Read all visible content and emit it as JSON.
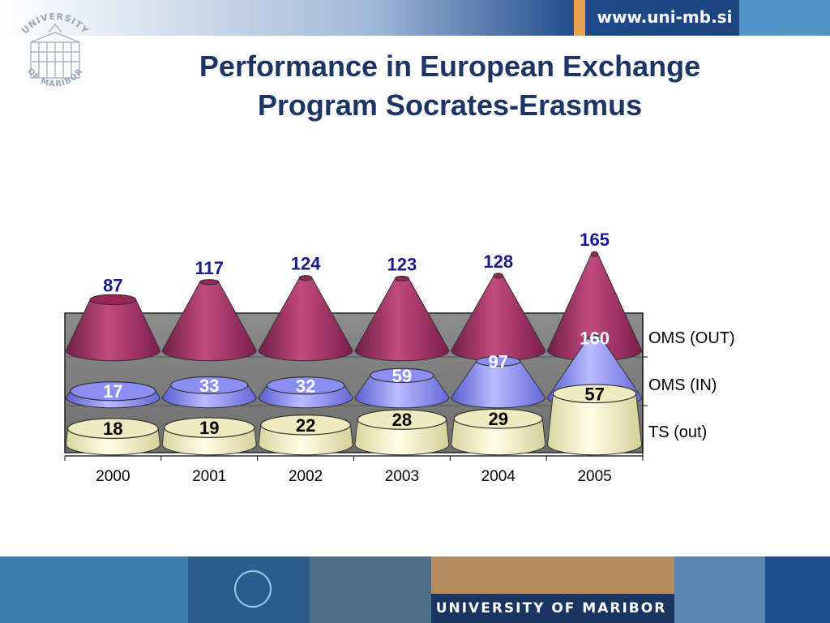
{
  "header": {
    "url": "www.uni-mb.si",
    "logo_text_top": "UNIVERSITY",
    "logo_text_bottom": "OF MARIBOR",
    "title_line1": "Performance in European Exchange",
    "title_line2": "Program Socrates-Erasmus"
  },
  "footer": {
    "university_label": "UNIVERSITY OF MARIBOR"
  },
  "chart_data": {
    "type": "bar",
    "style": "3d-cone-stacked-rows",
    "categories": [
      "2000",
      "2001",
      "2002",
      "2003",
      "2004",
      "2005"
    ],
    "series": [
      {
        "name": "TS (out)",
        "values": [
          18,
          19,
          22,
          28,
          29,
          57
        ],
        "color": "#f4f2c4"
      },
      {
        "name": "OMS (IN)",
        "values": [
          17,
          33,
          32,
          59,
          97,
          160
        ],
        "color": "#8a8ef0"
      },
      {
        "name": "OMS (OUT)",
        "values": [
          87,
          117,
          124,
          123,
          128,
          165
        ],
        "color": "#a8265e"
      }
    ],
    "label_colors": {
      "TS (out)": "#000000",
      "OMS (IN)": "#ffffff",
      "OMS (OUT)": "#1a1a8c"
    },
    "legend": "right",
    "grid": false
  }
}
